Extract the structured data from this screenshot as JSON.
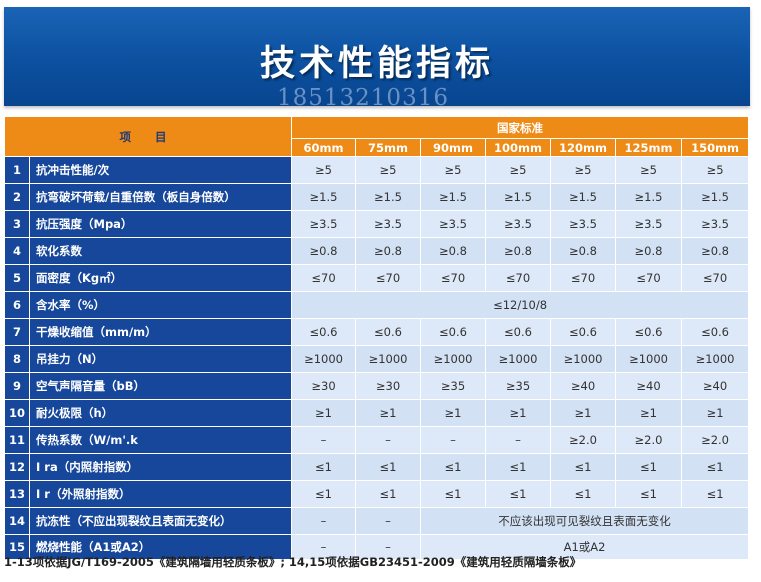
{
  "banner": {
    "title": "技术性能指标",
    "phone": "18513210316"
  },
  "header": {
    "item": "项 目",
    "standard": "国家标准",
    "sizes": [
      "60mm",
      "75mm",
      "90mm",
      "100mm",
      "120mm",
      "125mm",
      "150mm"
    ]
  },
  "rows": [
    {
      "num": "1",
      "label": "抗冲击性能/次",
      "values": [
        "≥5",
        "≥5",
        "≥5",
        "≥5",
        "≥5",
        "≥5",
        "≥5"
      ]
    },
    {
      "num": "2",
      "label": "抗弯破坏荷载/自重倍数（板自身倍数）",
      "values": [
        "≥1.5",
        "≥1.5",
        "≥1.5",
        "≥1.5",
        "≥1.5",
        "≥1.5",
        "≥1.5"
      ]
    },
    {
      "num": "3",
      "label": "抗压强度（Mpa）",
      "values": [
        "≥3.5",
        "≥3.5",
        "≥3.5",
        "≥3.5",
        "≥3.5",
        "≥3.5",
        "≥3.5"
      ]
    },
    {
      "num": "4",
      "label": "软化系数",
      "values": [
        "≥0.8",
        "≥0.8",
        "≥0.8",
        "≥0.8",
        "≥0.8",
        "≥0.8",
        "≥0.8"
      ]
    },
    {
      "num": "5",
      "label": "面密度（Kg㎡）",
      "values": [
        "≤70",
        "≤70",
        "≤70",
        "≤70",
        "≤70",
        "≤70",
        "≤70"
      ]
    },
    {
      "num": "6",
      "label": "含水率（%）",
      "span_text": "≤12/10/8"
    },
    {
      "num": "7",
      "label": "干燥收缩值（mm/m）",
      "values": [
        "≤0.6",
        "≤0.6",
        "≤0.6",
        "≤0.6",
        "≤0.6",
        "≤0.6",
        "≤0.6"
      ]
    },
    {
      "num": "8",
      "label": "吊挂力（N）",
      "values": [
        "≥1000",
        "≥1000",
        "≥1000",
        "≥1000",
        "≥1000",
        "≥1000",
        "≥1000"
      ]
    },
    {
      "num": "9",
      "label": "空气声隔音量（bB）",
      "values": [
        "≥30",
        "≥30",
        "≥35",
        "≥35",
        "≥40",
        "≥40",
        "≥40"
      ]
    },
    {
      "num": "10",
      "label": "耐火极限（h）",
      "values": [
        "≥1",
        "≥1",
        "≥1",
        "≥1",
        "≥1",
        "≥1",
        "≥1"
      ]
    },
    {
      "num": "11",
      "label": "传热系数（W/m'.k",
      "values": [
        "–",
        "–",
        "–",
        "–",
        "≥2.0",
        "≥2.0",
        "≥2.0"
      ]
    },
    {
      "num": "12",
      "label": "I ra（内照射指数）",
      "values": [
        "≤1",
        "≤1",
        "≤1",
        "≤1",
        "≤1",
        "≤1",
        "≤1"
      ]
    },
    {
      "num": "13",
      "label": "I r（外照射指数）",
      "values": [
        "≤1",
        "≤1",
        "≤1",
        "≤1",
        "≤1",
        "≤1",
        "≤1"
      ]
    },
    {
      "num": "14",
      "label": "抗冻性（不应出现裂纹且表面无变化）",
      "values": [
        "–",
        "–"
      ],
      "span_text": "不应该出现可见裂纹且表面无变化"
    },
    {
      "num": "15",
      "label": "燃烧性能（A1或A2）",
      "values": [
        "–",
        "–"
      ],
      "span_text": "A1或A2"
    }
  ],
  "footer": "1-13项依据JG/T169-2005《建筑隔墙用轻质条板》; 14,15项依据GB23451-2009《建筑用轻质隔墙条板》"
}
